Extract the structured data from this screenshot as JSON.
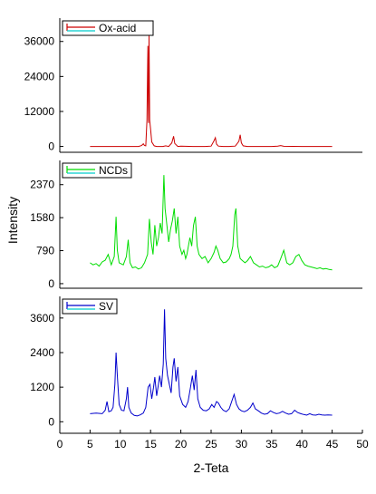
{
  "chart_data": [
    {
      "type": "line",
      "series": [
        {
          "name": "Ox-acid",
          "color": "#cc0000",
          "points": [
            [
              5,
              0
            ],
            [
              6,
              0
            ],
            [
              7,
              0
            ],
            [
              8,
              0
            ],
            [
              9,
              0
            ],
            [
              10,
              0
            ],
            [
              11,
              0
            ],
            [
              12,
              0
            ],
            [
              13,
              0
            ],
            [
              13.5,
              300
            ],
            [
              13.8,
              900
            ],
            [
              14,
              300
            ],
            [
              14.2,
              200
            ],
            [
              14.4,
              9000
            ],
            [
              14.55,
              34500
            ],
            [
              14.65,
              8000
            ],
            [
              14.75,
              38000
            ],
            [
              14.85,
              9000
            ],
            [
              15.0,
              6000
            ],
            [
              15.2,
              1500
            ],
            [
              15.6,
              200
            ],
            [
              16,
              0
            ],
            [
              17,
              0
            ],
            [
              17.5,
              200
            ],
            [
              18,
              0
            ],
            [
              18.5,
              1200
            ],
            [
              18.8,
              3500
            ],
            [
              19.0,
              1000
            ],
            [
              19.5,
              0
            ],
            [
              20,
              100
            ],
            [
              22,
              0
            ],
            [
              24,
              0
            ],
            [
              25,
              100
            ],
            [
              25.5,
              2000
            ],
            [
              25.7,
              3000
            ],
            [
              25.9,
              800
            ],
            [
              26.2,
              100
            ],
            [
              27,
              0
            ],
            [
              28,
              0
            ],
            [
              29,
              100
            ],
            [
              29.6,
              1800
            ],
            [
              29.8,
              4000
            ],
            [
              30.0,
              1200
            ],
            [
              30.3,
              200
            ],
            [
              31,
              0
            ],
            [
              35,
              0
            ],
            [
              36,
              100
            ],
            [
              36.5,
              300
            ],
            [
              37,
              50
            ],
            [
              40,
              0
            ],
            [
              45,
              0
            ]
          ]
        }
      ],
      "y_ticks": [
        0,
        12000,
        24000,
        36000
      ],
      "y_tick_labels": [
        "0",
        "12000",
        "24000",
        "36000"
      ],
      "ylim": [
        -2000,
        44000
      ]
    },
    {
      "type": "line",
      "series": [
        {
          "name": "NCDs",
          "color": "#00dd00",
          "points": [
            [
              5,
              500
            ],
            [
              5.5,
              450
            ],
            [
              6,
              480
            ],
            [
              6.5,
              420
            ],
            [
              7,
              520
            ],
            [
              7.5,
              560
            ],
            [
              8,
              700
            ],
            [
              8.5,
              450
            ],
            [
              9,
              650
            ],
            [
              9.3,
              1600
            ],
            [
              9.5,
              800
            ],
            [
              9.8,
              500
            ],
            [
              10.5,
              450
            ],
            [
              11,
              650
            ],
            [
              11.3,
              1050
            ],
            [
              11.6,
              500
            ],
            [
              12,
              380
            ],
            [
              12.5,
              400
            ],
            [
              13,
              350
            ],
            [
              13.5,
              380
            ],
            [
              14,
              500
            ],
            [
              14.5,
              700
            ],
            [
              14.8,
              1550
            ],
            [
              15.1,
              1000
            ],
            [
              15.4,
              700
            ],
            [
              15.7,
              1400
            ],
            [
              16,
              900
            ],
            [
              16.3,
              1100
            ],
            [
              16.6,
              1450
            ],
            [
              16.9,
              1200
            ],
            [
              17.2,
              2600
            ],
            [
              17.4,
              1800
            ],
            [
              17.7,
              1400
            ],
            [
              18,
              1000
            ],
            [
              18.3,
              1300
            ],
            [
              18.6,
              1500
            ],
            [
              18.9,
              1800
            ],
            [
              19.2,
              1200
            ],
            [
              19.5,
              1600
            ],
            [
              19.8,
              900
            ],
            [
              20.2,
              700
            ],
            [
              20.5,
              800
            ],
            [
              20.8,
              600
            ],
            [
              21,
              700
            ],
            [
              21.5,
              1100
            ],
            [
              21.8,
              900
            ],
            [
              22.1,
              1400
            ],
            [
              22.4,
              1600
            ],
            [
              22.7,
              900
            ],
            [
              23,
              700
            ],
            [
              23.5,
              600
            ],
            [
              24,
              650
            ],
            [
              24.5,
              500
            ],
            [
              25,
              600
            ],
            [
              25.5,
              750
            ],
            [
              25.8,
              900
            ],
            [
              26.1,
              800
            ],
            [
              26.5,
              600
            ],
            [
              27,
              500
            ],
            [
              27.5,
              520
            ],
            [
              28,
              600
            ],
            [
              28.3,
              700
            ],
            [
              28.6,
              900
            ],
            [
              28.9,
              1650
            ],
            [
              29.1,
              1800
            ],
            [
              29.4,
              900
            ],
            [
              29.8,
              600
            ],
            [
              30.2,
              550
            ],
            [
              30.6,
              500
            ],
            [
              31,
              550
            ],
            [
              31.5,
              650
            ],
            [
              32,
              500
            ],
            [
              32.5,
              450
            ],
            [
              33,
              400
            ],
            [
              33.5,
              420
            ],
            [
              34,
              380
            ],
            [
              34.5,
              400
            ],
            [
              35,
              450
            ],
            [
              35.5,
              380
            ],
            [
              36,
              420
            ],
            [
              36.5,
              600
            ],
            [
              37,
              800
            ],
            [
              37.5,
              500
            ],
            [
              38,
              450
            ],
            [
              38.5,
              500
            ],
            [
              39,
              650
            ],
            [
              39.5,
              700
            ],
            [
              40,
              550
            ],
            [
              40.5,
              450
            ],
            [
              41,
              420
            ],
            [
              41.5,
              400
            ],
            [
              42,
              380
            ],
            [
              42.5,
              360
            ],
            [
              43,
              380
            ],
            [
              43.5,
              350
            ],
            [
              44,
              360
            ],
            [
              44.5,
              340
            ],
            [
              45,
              330
            ]
          ]
        }
      ],
      "y_ticks": [
        0,
        790,
        1580,
        2370
      ],
      "y_tick_labels": [
        "0",
        "790",
        "1580",
        "2370"
      ],
      "ylim": [
        -110,
        2950
      ]
    },
    {
      "type": "line",
      "series": [
        {
          "name": "SV",
          "color": "#0000cc",
          "points": [
            [
              5,
              280
            ],
            [
              6,
              300
            ],
            [
              7,
              280
            ],
            [
              7.5,
              400
            ],
            [
              7.8,
              700
            ],
            [
              8.1,
              350
            ],
            [
              8.5,
              380
            ],
            [
              8.8,
              500
            ],
            [
              9.1,
              1300
            ],
            [
              9.3,
              2400
            ],
            [
              9.5,
              1600
            ],
            [
              9.8,
              600
            ],
            [
              10.2,
              400
            ],
            [
              10.6,
              380
            ],
            [
              11.0,
              800
            ],
            [
              11.2,
              1200
            ],
            [
              11.4,
              500
            ],
            [
              11.8,
              300
            ],
            [
              12.3,
              220
            ],
            [
              12.8,
              200
            ],
            [
              13.3,
              240
            ],
            [
              13.8,
              300
            ],
            [
              14.2,
              500
            ],
            [
              14.6,
              1200
            ],
            [
              14.9,
              1300
            ],
            [
              15.2,
              800
            ],
            [
              15.5,
              1200
            ],
            [
              15.7,
              1550
            ],
            [
              16.0,
              900
            ],
            [
              16.3,
              1300
            ],
            [
              16.5,
              1600
            ],
            [
              16.8,
              1200
            ],
            [
              17.1,
              2000
            ],
            [
              17.3,
              3900
            ],
            [
              17.5,
              2200
            ],
            [
              17.8,
              1600
            ],
            [
              18.1,
              1300
            ],
            [
              18.4,
              1000
            ],
            [
              18.7,
              1900
            ],
            [
              18.9,
              2200
            ],
            [
              19.2,
              1400
            ],
            [
              19.5,
              1900
            ],
            [
              19.8,
              900
            ],
            [
              20.3,
              600
            ],
            [
              20.8,
              500
            ],
            [
              21.2,
              700
            ],
            [
              21.6,
              1200
            ],
            [
              21.9,
              1600
            ],
            [
              22.2,
              1100
            ],
            [
              22.5,
              1800
            ],
            [
              22.8,
              800
            ],
            [
              23.2,
              500
            ],
            [
              23.7,
              400
            ],
            [
              24.2,
              380
            ],
            [
              24.7,
              450
            ],
            [
              25.1,
              600
            ],
            [
              25.5,
              500
            ],
            [
              25.9,
              700
            ],
            [
              26.2,
              650
            ],
            [
              26.6,
              500
            ],
            [
              27.0,
              400
            ],
            [
              27.5,
              350
            ],
            [
              28.0,
              450
            ],
            [
              28.4,
              700
            ],
            [
              28.8,
              950
            ],
            [
              29.2,
              600
            ],
            [
              29.6,
              450
            ],
            [
              30.0,
              380
            ],
            [
              30.5,
              350
            ],
            [
              31.0,
              400
            ],
            [
              31.5,
              500
            ],
            [
              31.9,
              650
            ],
            [
              32.3,
              450
            ],
            [
              32.8,
              380
            ],
            [
              33.3,
              300
            ],
            [
              33.8,
              260
            ],
            [
              34.3,
              280
            ],
            [
              34.8,
              380
            ],
            [
              35.3,
              320
            ],
            [
              35.8,
              280
            ],
            [
              36.3,
              300
            ],
            [
              36.8,
              360
            ],
            [
              37.3,
              300
            ],
            [
              37.8,
              260
            ],
            [
              38.3,
              280
            ],
            [
              38.8,
              400
            ],
            [
              39.3,
              320
            ],
            [
              39.8,
              280
            ],
            [
              40.3,
              250
            ],
            [
              40.8,
              230
            ],
            [
              41.3,
              280
            ],
            [
              41.8,
              240
            ],
            [
              42.3,
              230
            ],
            [
              42.8,
              260
            ],
            [
              43.3,
              240
            ],
            [
              43.8,
              230
            ],
            [
              44.3,
              240
            ],
            [
              45.0,
              230
            ]
          ]
        }
      ],
      "y_ticks": [
        0,
        1200,
        2400,
        3600
      ],
      "y_tick_labels": [
        "0",
        "1200",
        "2400",
        "3600"
      ],
      "ylim": [
        -400,
        4350
      ]
    }
  ],
  "shared_x": {
    "xlabel": "2-Teta",
    "xlim": [
      0,
      50
    ],
    "ticks": [
      0,
      5,
      10,
      15,
      20,
      25,
      30,
      35,
      40,
      45,
      50
    ],
    "tick_labels": [
      "0",
      "5",
      "10",
      "15",
      "20",
      "25",
      "30",
      "35",
      "40",
      "45",
      "50"
    ]
  },
  "ylabel": "Intensity",
  "legend_accent_color": "#00cccc"
}
